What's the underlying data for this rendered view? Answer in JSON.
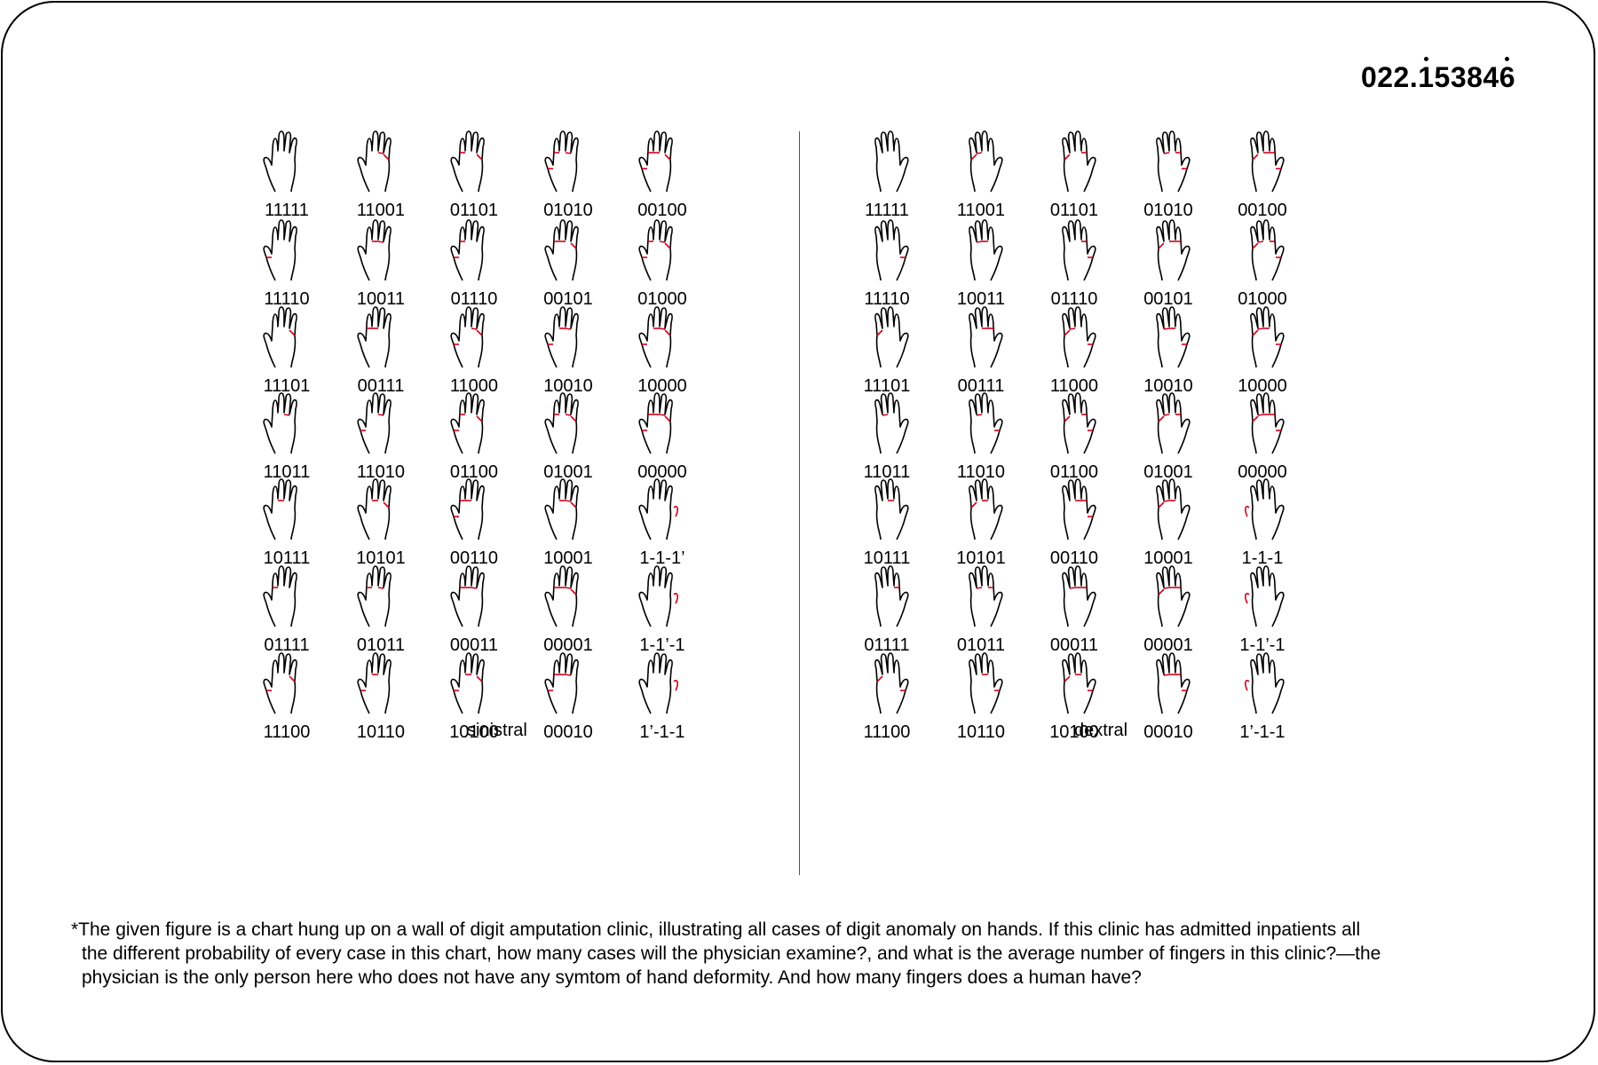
{
  "header": {
    "number_prefix": "022.",
    "number_dot1": "1",
    "number_mid": "5384",
    "number_dot2": "6"
  },
  "panels": [
    {
      "label": "sinistral",
      "side": "left",
      "rows": [
        [
          "11111",
          "11001",
          "01101",
          "01010",
          "00100"
        ],
        [
          "11110",
          "10011",
          "01110",
          "00101",
          "01000"
        ],
        [
          "11101",
          "00111",
          "11000",
          "10010",
          "10000"
        ],
        [
          "11011",
          "11010",
          "01100",
          "01001",
          "00000"
        ],
        [
          "10111",
          "10101",
          "00110",
          "10001",
          "1-1-1’"
        ],
        [
          "01111",
          "01011",
          "00011",
          "00001",
          "1-1’-1"
        ],
        [
          "11100",
          "10110",
          "10100",
          "00010",
          "1’-1-1"
        ]
      ]
    },
    {
      "label": "dextral",
      "side": "right",
      "rows": [
        [
          "11111",
          "11001",
          "01101",
          "01010",
          "00100"
        ],
        [
          "11110",
          "10011",
          "01110",
          "00101",
          "01000"
        ],
        [
          "11101",
          "00111",
          "11000",
          "10010",
          "10000"
        ],
        [
          "11011",
          "11010",
          "01100",
          "01001",
          "00000"
        ],
        [
          "10111",
          "10101",
          "00110",
          "10001",
          "1-1-1"
        ],
        [
          "01111",
          "01011",
          "00011",
          "00001",
          "1-1’-1"
        ],
        [
          "11100",
          "10110",
          "10100",
          "00010",
          "1’-1-1"
        ]
      ]
    }
  ],
  "footnote": {
    "line1": "*The given figure is a chart hung up on a wall of digit amputation clinic, illustrating all cases of digit anomaly on hands. If this clinic has admitted inpatients all",
    "line2": "the different probability of every case in this chart, how many cases will the physician examine?, and what is the average number of fingers in this clinic?—the",
    "line3": "physician is the only person here who does not have any symtom of hand deformity. And how many fingers does a human have?"
  },
  "colors": {
    "outline": "#000000",
    "marker": "#d0021b",
    "divider": "#555555"
  },
  "icon_name": "hand-icon"
}
